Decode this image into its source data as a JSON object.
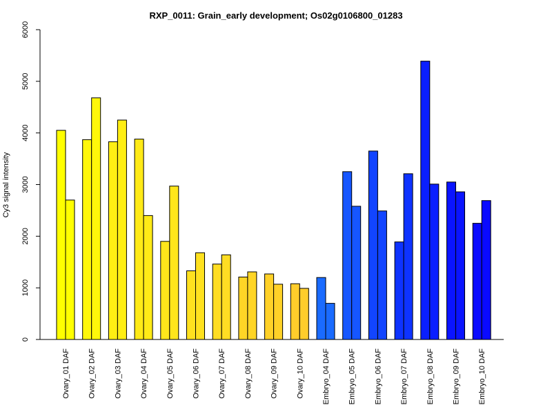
{
  "chart_data": {
    "type": "bar",
    "title": "RXP_0011: Grain_early development; Os02g0106800_01283",
    "xlabel": "",
    "ylabel": "Cy3 signal intensity",
    "ylim": [
      0,
      6000
    ],
    "yticks": [
      0,
      1000,
      2000,
      3000,
      4000,
      5000,
      6000
    ],
    "grid": false,
    "legend": "none",
    "bars_per_group": 2,
    "categories": [
      "Ovary_01 DAF",
      "Ovary_02 DAF",
      "Ovary_03 DAF",
      "Ovary_04 DAF",
      "Ovary_05 DAF",
      "Ovary_06 DAF",
      "Ovary_07 DAF",
      "Ovary_08 DAF",
      "Ovary_09 DAF",
      "Ovary_10 DAF",
      "Embryo_04 DAF",
      "Embryo_05 DAF",
      "Embryo_06 DAF",
      "Embryo_07 DAF",
      "Embryo_08 DAF",
      "Embryo_09 DAF",
      "Embryo_10 DAF"
    ],
    "colors": [
      "#FFFF00",
      "#FFF70A",
      "#FFEE13",
      "#FFEA17",
      "#FFE61B",
      "#FFE11F",
      "#FFDD23",
      "#FFD526",
      "#FFD128",
      "#FFCD2B",
      "#1A6BFF",
      "#1656FF",
      "#1245FF",
      "#0E33FF",
      "#0A1FFF",
      "#0A14FF",
      "#0A0AFF"
    ],
    "values": [
      [
        4050,
        2700
      ],
      [
        3870,
        4680
      ],
      [
        3830,
        4250
      ],
      [
        3880,
        2400
      ],
      [
        1900,
        2970
      ],
      [
        1330,
        1680
      ],
      [
        1460,
        1640
      ],
      [
        1210,
        1310
      ],
      [
        1270,
        1070
      ],
      [
        1080,
        990
      ],
      [
        1200,
        700
      ],
      [
        3250,
        2580
      ],
      [
        3650,
        2490
      ],
      [
        1890,
        3210
      ],
      [
        5390,
        3010
      ],
      [
        3050,
        2860
      ],
      [
        2250,
        2690
      ]
    ]
  }
}
